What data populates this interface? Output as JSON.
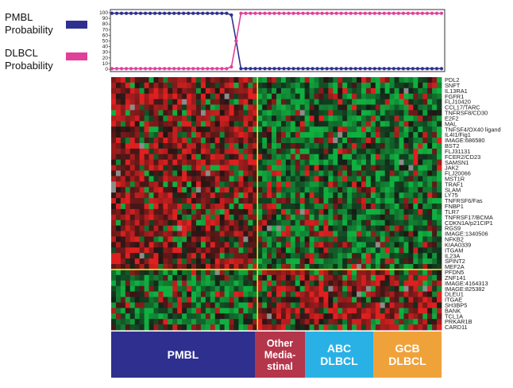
{
  "chart_data": [
    {
      "type": "line",
      "ylim": [
        0,
        100
      ],
      "yticks": [
        "100",
        "90",
        "80",
        "70",
        "60",
        "50",
        "40",
        "30",
        "20",
        "10",
        "0"
      ],
      "grid": false,
      "legend_placement": "left",
      "series": [
        {
          "name": "PMBL Probability",
          "label_lines": [
            "PMBL",
            "Probability"
          ],
          "color": "#2f2f8f",
          "values": [
            99,
            99,
            99,
            99,
            99,
            99,
            99,
            99,
            99,
            99,
            99,
            99,
            99,
            99,
            99,
            99,
            99,
            99,
            99,
            99,
            99,
            99,
            99,
            99,
            99,
            96,
            50,
            1,
            1,
            1,
            1,
            1,
            1,
            1,
            1,
            1,
            1,
            1,
            1,
            1,
            1,
            1,
            1,
            1,
            1,
            1,
            1,
            1,
            1,
            1,
            1,
            1,
            1,
            1,
            1,
            1,
            1,
            1,
            1,
            1,
            1,
            1,
            1,
            1,
            1,
            1,
            1,
            1,
            1,
            1
          ]
        },
        {
          "name": "DLBCL Probability",
          "label_lines": [
            "DLBCL",
            "Probability"
          ],
          "color": "#e0409a",
          "values": [
            1,
            1,
            1,
            1,
            1,
            1,
            1,
            1,
            1,
            1,
            1,
            1,
            1,
            1,
            1,
            1,
            1,
            1,
            1,
            1,
            1,
            1,
            1,
            1,
            1,
            4,
            50,
            99,
            99,
            99,
            99,
            99,
            99,
            99,
            99,
            99,
            99,
            99,
            99,
            99,
            99,
            99,
            99,
            99,
            99,
            99,
            99,
            99,
            99,
            99,
            99,
            99,
            99,
            99,
            99,
            99,
            99,
            99,
            99,
            99,
            99,
            99,
            99,
            99,
            99,
            99,
            99,
            99,
            99,
            99
          ]
        }
      ]
    },
    {
      "type": "heatmap",
      "colors": {
        "up": "#e02020",
        "down": "#10b040",
        "mid": "#141414",
        "missing": "#8c8c8c",
        "divider": "#f2e21a"
      },
      "genes_upper": [
        "PDL2",
        "SNFT",
        "IL13RA1",
        "FGFR1",
        "FLJ10420",
        "CCL17/TARC",
        "TNFRSF8/CD30",
        "E2F2",
        "MAL",
        "TNFSF4/OX40 ligand",
        "IL4I1/Fig1",
        "IMAGE:686580",
        "BST2",
        "FLJ31131",
        "FCER2/CD23",
        "SAMSN1",
        "JAK2",
        "FLJ20066",
        "MST1R",
        "TRAF1",
        "SLAM",
        "LY75",
        "TNFRSF6/Fas",
        "FNBP1",
        "TLR7",
        "TNFRSF17/BCMA",
        "CDKN1A/p21CIP1",
        "RGS9",
        "IMAGE:1340506",
        "NFKB2",
        "KIAA0339",
        "ITGAM",
        "IL23A",
        "SPINT2",
        "MEF2A"
      ],
      "genes_lower": [
        "PFDN5",
        "ZNF141",
        "IMAGE:4164313",
        "IMAGE:825382",
        "DLEU1",
        "ITGAE",
        "SH3BP5",
        "BANK",
        "TCL1A",
        "PRKAR1B",
        "CARD11"
      ]
    }
  ],
  "groups": [
    {
      "line1": "PMBL",
      "line2": "",
      "line3": "",
      "color": "#2f2f8f"
    },
    {
      "line1": "Other",
      "line2": "Media-",
      "line3": "stinal",
      "color": "#b3364b"
    },
    {
      "line1": "ABC",
      "line2": "DLBCL",
      "line3": "",
      "color": "#29b1e6"
    },
    {
      "line1": "GCB",
      "line2": "DLBCL",
      "line3": "",
      "color": "#f0a23a"
    }
  ]
}
